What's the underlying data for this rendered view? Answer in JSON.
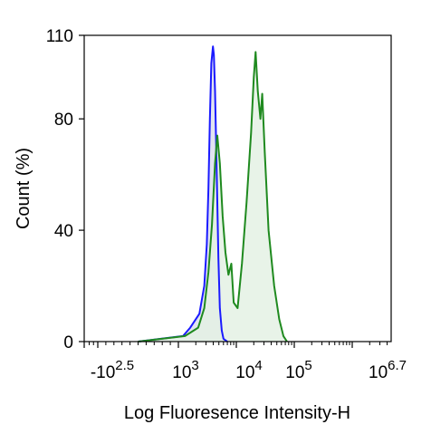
{
  "chart_data": {
    "type": "area",
    "title": "",
    "xlabel": "Log Fluoresence Intensity-H",
    "ylabel": "Count  (%)",
    "x_scale": "log (flow cytometry biexponential)",
    "x_tick_labels": [
      {
        "base": "-10",
        "exp": "2.5",
        "value": -316
      },
      {
        "base": "10",
        "exp": "3",
        "value": 1000
      },
      {
        "base": "10",
        "exp": "4",
        "value": 10000
      },
      {
        "base": "10",
        "exp": "5",
        "value": 100000
      },
      {
        "base": "10",
        "exp": "6.7",
        "value": 5011872
      }
    ],
    "y_ticks": [
      0,
      40,
      80,
      110
    ],
    "ylim": [
      0,
      110
    ],
    "grid": false,
    "series": [
      {
        "color": "#1a1aff",
        "fill": "#dfe3ef",
        "points": [
          [
            500,
            0
          ],
          [
            1200,
            2
          ],
          [
            1600,
            5
          ],
          [
            2300,
            10
          ],
          [
            2800,
            20
          ],
          [
            3100,
            35
          ],
          [
            3300,
            55
          ],
          [
            3500,
            80
          ],
          [
            3700,
            100
          ],
          [
            3950,
            106
          ],
          [
            4100,
            103
          ],
          [
            4300,
            90
          ],
          [
            4600,
            60
          ],
          [
            4900,
            30
          ],
          [
            5200,
            12
          ],
          [
            5600,
            4
          ],
          [
            6000,
            1
          ],
          [
            7000,
            0
          ]
        ]
      },
      {
        "color": "#1f8a1f",
        "fill": "#e4f1e4",
        "points": [
          [
            500,
            0
          ],
          [
            1300,
            2
          ],
          [
            2200,
            5
          ],
          [
            2800,
            12
          ],
          [
            3300,
            25
          ],
          [
            3800,
            42
          ],
          [
            4300,
            64
          ],
          [
            4700,
            74
          ],
          [
            5200,
            64
          ],
          [
            5800,
            45
          ],
          [
            6500,
            32
          ],
          [
            7300,
            24
          ],
          [
            8200,
            28
          ],
          [
            9000,
            14
          ],
          [
            10500,
            12
          ],
          [
            12500,
            28
          ],
          [
            15000,
            50
          ],
          [
            18000,
            75
          ],
          [
            20000,
            95
          ],
          [
            21500,
            104
          ],
          [
            23500,
            90
          ],
          [
            26000,
            80
          ],
          [
            28000,
            89
          ],
          [
            31000,
            68
          ],
          [
            36000,
            40
          ],
          [
            45000,
            20
          ],
          [
            55000,
            8
          ],
          [
            65000,
            2
          ],
          [
            75000,
            0
          ]
        ]
      }
    ]
  }
}
